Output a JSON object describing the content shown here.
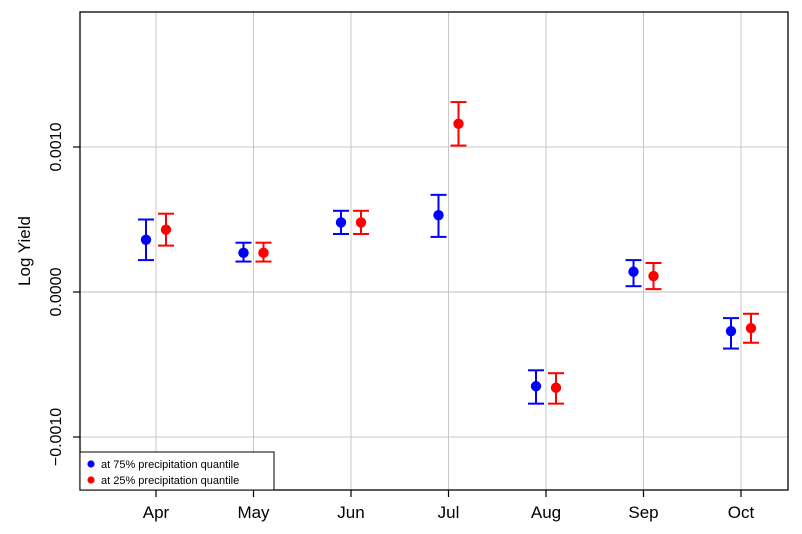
{
  "chart_data": {
    "type": "scatter",
    "subtype": "point-with-error-bars",
    "title": "",
    "xlabel": "",
    "ylabel": "Log Yield",
    "categories": [
      "Apr",
      "May",
      "Jun",
      "Jul",
      "Aug",
      "Sep",
      "Oct"
    ],
    "ylim": [
      -0.00133,
      0.00192
    ],
    "yticks": [
      -0.001,
      0.0,
      0.001
    ],
    "ytick_labels": [
      "−0.0010",
      "0.0000",
      "0.0010"
    ],
    "grid": true,
    "reference_line_y": 0.0,
    "legend_position": "bottom-left",
    "series": [
      {
        "name": "at 75% precipitation quantile",
        "color": "#0000ff",
        "values": [
          0.00036,
          0.00027,
          0.00048,
          0.00053,
          -0.00065,
          0.00014,
          -0.00027
        ],
        "lower": [
          0.00022,
          0.00021,
          0.0004,
          0.00038,
          -0.00077,
          4e-05,
          -0.00039
        ],
        "upper": [
          0.0005,
          0.00034,
          0.00056,
          0.00067,
          -0.00054,
          0.00022,
          -0.00018
        ]
      },
      {
        "name": "at 25% precipitation quantile",
        "color": "#ff0000",
        "values": [
          0.00043,
          0.00027,
          0.00048,
          0.00116,
          -0.00066,
          0.00011,
          -0.00025
        ],
        "lower": [
          0.00032,
          0.00021,
          0.0004,
          0.00101,
          -0.00077,
          2e-05,
          -0.00035
        ],
        "upper": [
          0.00054,
          0.00034,
          0.00056,
          0.00131,
          -0.00056,
          0.0002,
          -0.00015
        ]
      }
    ]
  }
}
